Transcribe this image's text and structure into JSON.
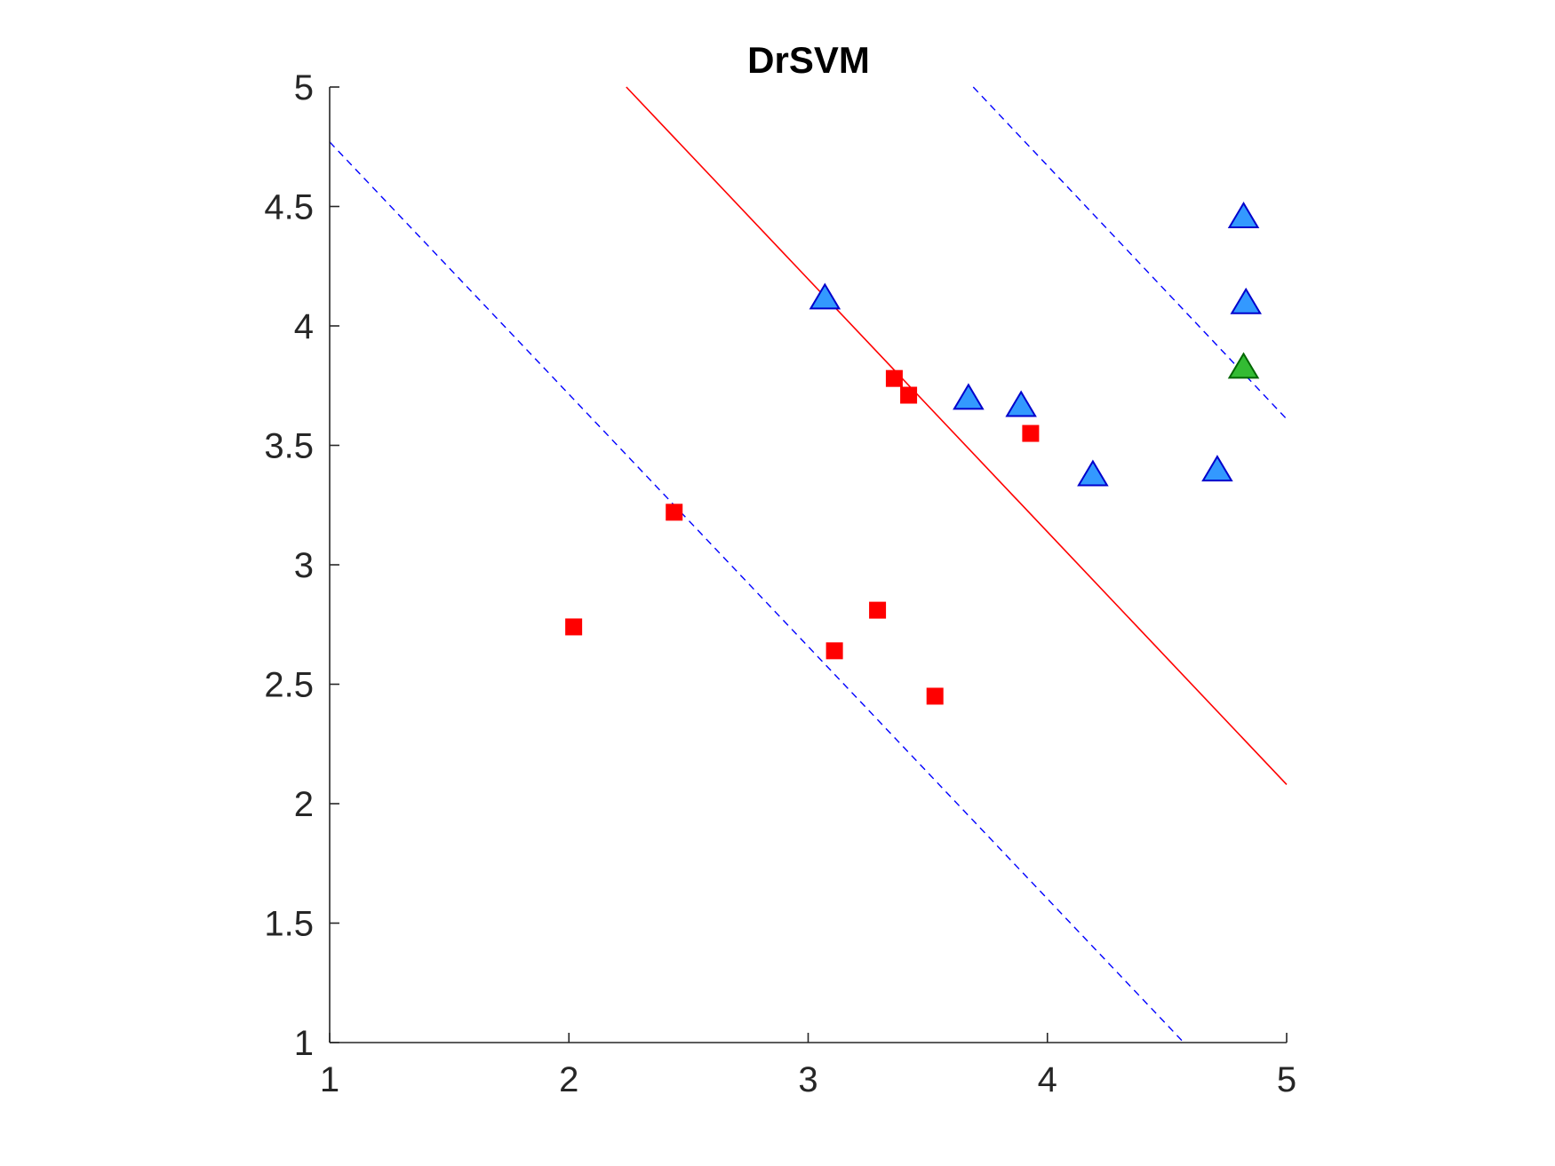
{
  "chart_data": {
    "type": "scatter",
    "title": "DrSVM",
    "xlabel": "",
    "ylabel": "",
    "xlim": [
      1,
      5
    ],
    "ylim": [
      1,
      5
    ],
    "x_ticks": [
      1,
      2,
      3,
      4,
      5
    ],
    "x_tick_labels": [
      "1",
      "2",
      "3",
      "4",
      "5"
    ],
    "y_ticks": [
      1,
      1.5,
      2,
      2.5,
      3,
      3.5,
      4,
      4.5,
      5
    ],
    "y_tick_labels": [
      "1",
      "1.5",
      "2",
      "2.5",
      "3",
      "3.5",
      "4",
      "4.5",
      "5"
    ],
    "grid": false,
    "series": [
      {
        "marker": "square",
        "color": "#ff0000",
        "points": [
          [
            2.02,
            2.74
          ],
          [
            2.44,
            3.22
          ],
          [
            3.11,
            2.64
          ],
          [
            3.29,
            2.81
          ],
          [
            3.36,
            3.78
          ],
          [
            3.42,
            3.71
          ],
          [
            3.53,
            2.45
          ],
          [
            3.93,
            3.55
          ]
        ]
      },
      {
        "marker": "triangle",
        "color": "#3399ff",
        "edge_color": "#0000cc",
        "points": [
          [
            3.07,
            4.11
          ],
          [
            3.67,
            3.69
          ],
          [
            3.89,
            3.66
          ],
          [
            4.19,
            3.37
          ],
          [
            4.71,
            3.39
          ],
          [
            4.82,
            4.45
          ],
          [
            4.83,
            4.09
          ]
        ]
      },
      {
        "marker": "triangle",
        "color": "#33bb33",
        "edge_color": "#006600",
        "points": [
          [
            4.82,
            3.82
          ]
        ]
      }
    ],
    "lines": [
      {
        "style": "solid",
        "color": "#ff0000",
        "from": [
          2.24,
          5.0
        ],
        "to": [
          5.0,
          2.08
        ]
      },
      {
        "style": "dashed",
        "color": "#0000ff",
        "from": [
          1.0,
          4.77
        ],
        "to": [
          4.57,
          1.0
        ]
      },
      {
        "style": "dashed",
        "color": "#0000ff",
        "from": [
          3.69,
          5.0
        ],
        "to": [
          5.0,
          3.61
        ]
      }
    ]
  }
}
